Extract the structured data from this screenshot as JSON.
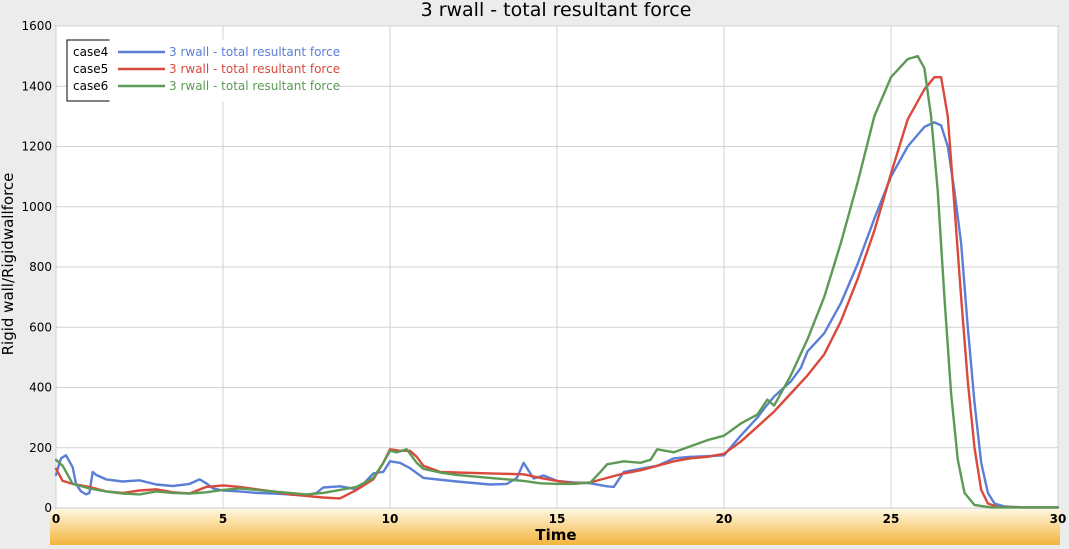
{
  "chart_data": {
    "type": "line",
    "title": "3 rwall - total resultant force",
    "xlabel": "Time",
    "ylabel": "Rigid wall/Rigidwallforce",
    "xlim": [
      0,
      30
    ],
    "ylim": [
      0,
      1600
    ],
    "xticks": [
      0,
      5,
      10,
      15,
      20,
      25,
      30
    ],
    "yticks": [
      0,
      200,
      400,
      600,
      800,
      1000,
      1200,
      1400,
      1600
    ],
    "grid": true,
    "legend_position": "top-left",
    "series": [
      {
        "case": "case4",
        "name": "3 rwall - total resultant force",
        "color": "#5b7fd6",
        "x": [
          0,
          0.15,
          0.3,
          0.5,
          0.6,
          0.75,
          0.9,
          1.0,
          1.1,
          1.2,
          1.5,
          2.0,
          2.5,
          3.0,
          3.5,
          4.0,
          4.3,
          4.5,
          4.7,
          5.0,
          5.5,
          6.0,
          6.5,
          7.0,
          7.5,
          7.8,
          8.0,
          8.5,
          9.0,
          9.2,
          9.5,
          9.8,
          10.0,
          10.3,
          10.6,
          11.0,
          12.0,
          13.0,
          13.5,
          13.8,
          14.0,
          14.3,
          14.6,
          15.0,
          15.5,
          16.0,
          16.5,
          16.7,
          17.0,
          17.5,
          18.0,
          18.5,
          19.0,
          19.5,
          20.0,
          20.5,
          21.0,
          21.2,
          21.5,
          22.0,
          22.3,
          22.5,
          23.0,
          23.5,
          24.0,
          24.5,
          25.0,
          25.5,
          26.0,
          26.3,
          26.5,
          26.7,
          26.9,
          27.1,
          27.3,
          27.5,
          27.7,
          27.9,
          28.1,
          28.4,
          29.0,
          30.0
        ],
        "values": [
          110,
          165,
          175,
          135,
          80,
          55,
          45,
          50,
          120,
          110,
          95,
          88,
          92,
          78,
          73,
          80,
          95,
          82,
          65,
          58,
          55,
          50,
          48,
          45,
          42,
          50,
          68,
          72,
          62,
          80,
          115,
          120,
          155,
          150,
          132,
          100,
          88,
          78,
          80,
          100,
          150,
          98,
          108,
          90,
          85,
          82,
          72,
          70,
          120,
          130,
          140,
          165,
          170,
          172,
          175,
          240,
          300,
          330,
          370,
          420,
          465,
          520,
          580,
          680,
          810,
          960,
          1100,
          1200,
          1265,
          1280,
          1270,
          1200,
          1050,
          880,
          600,
          350,
          150,
          50,
          15,
          5,
          2,
          2
        ]
      },
      {
        "case": "case5",
        "name": "3 rwall - total resultant force",
        "color": "#d94a3c",
        "x": [
          0,
          0.2,
          0.5,
          1.0,
          1.5,
          2.0,
          2.5,
          3.0,
          3.5,
          4.0,
          4.5,
          5.0,
          5.5,
          6.0,
          6.5,
          7.0,
          7.5,
          8.0,
          8.5,
          9.0,
          9.5,
          9.8,
          10.0,
          10.3,
          10.6,
          10.8,
          11.0,
          11.5,
          12.0,
          13.0,
          14.0,
          14.5,
          15.0,
          15.5,
          16.0,
          16.5,
          17.0,
          17.5,
          18.0,
          18.5,
          19.0,
          19.5,
          20.0,
          20.5,
          21.0,
          21.5,
          22.0,
          22.5,
          23.0,
          23.5,
          24.0,
          24.5,
          25.0,
          25.5,
          26.0,
          26.3,
          26.5,
          26.7,
          26.9,
          27.1,
          27.3,
          27.5,
          27.7,
          27.9,
          28.2,
          29.0,
          30.0
        ],
        "values": [
          130,
          90,
          80,
          70,
          55,
          50,
          58,
          62,
          52,
          48,
          70,
          75,
          70,
          62,
          55,
          45,
          40,
          35,
          32,
          60,
          95,
          150,
          195,
          190,
          190,
          170,
          140,
          120,
          118,
          115,
          112,
          100,
          90,
          82,
          85,
          100,
          115,
          125,
          140,
          155,
          165,
          170,
          180,
          220,
          270,
          320,
          380,
          440,
          510,
          620,
          760,
          920,
          1110,
          1290,
          1390,
          1430,
          1430,
          1300,
          1000,
          700,
          420,
          200,
          60,
          15,
          3,
          2,
          2
        ]
      },
      {
        "case": "case6",
        "name": "3 rwall - total resultant force",
        "color": "#5c9a55",
        "x": [
          0,
          0.2,
          0.5,
          1.0,
          1.5,
          2.0,
          2.5,
          3.0,
          3.5,
          4.0,
          4.5,
          5.0,
          5.5,
          6.0,
          6.5,
          7.0,
          7.5,
          8.0,
          8.5,
          9.0,
          9.5,
          9.8,
          10.0,
          10.2,
          10.5,
          10.8,
          11.0,
          11.5,
          12.0,
          13.0,
          14.0,
          14.5,
          15.0,
          15.5,
          16.0,
          16.3,
          16.5,
          17.0,
          17.5,
          17.8,
          18.0,
          18.5,
          19.0,
          19.5,
          20.0,
          20.5,
          21.0,
          21.3,
          21.5,
          22.0,
          22.5,
          23.0,
          23.5,
          24.0,
          24.5,
          25.0,
          25.5,
          25.8,
          26.0,
          26.2,
          26.4,
          26.6,
          26.8,
          27.0,
          27.2,
          27.5,
          28.0,
          29.0,
          30.0
        ],
        "values": [
          160,
          140,
          80,
          65,
          55,
          48,
          45,
          55,
          50,
          48,
          52,
          60,
          65,
          60,
          55,
          50,
          45,
          50,
          60,
          70,
          100,
          150,
          190,
          185,
          195,
          150,
          130,
          118,
          110,
          100,
          90,
          82,
          80,
          80,
          85,
          120,
          145,
          155,
          150,
          160,
          195,
          185,
          205,
          225,
          240,
          280,
          310,
          360,
          340,
          440,
          560,
          700,
          880,
          1080,
          1300,
          1430,
          1490,
          1500,
          1460,
          1300,
          1050,
          700,
          380,
          160,
          50,
          10,
          2,
          2,
          2
        ]
      }
    ]
  }
}
